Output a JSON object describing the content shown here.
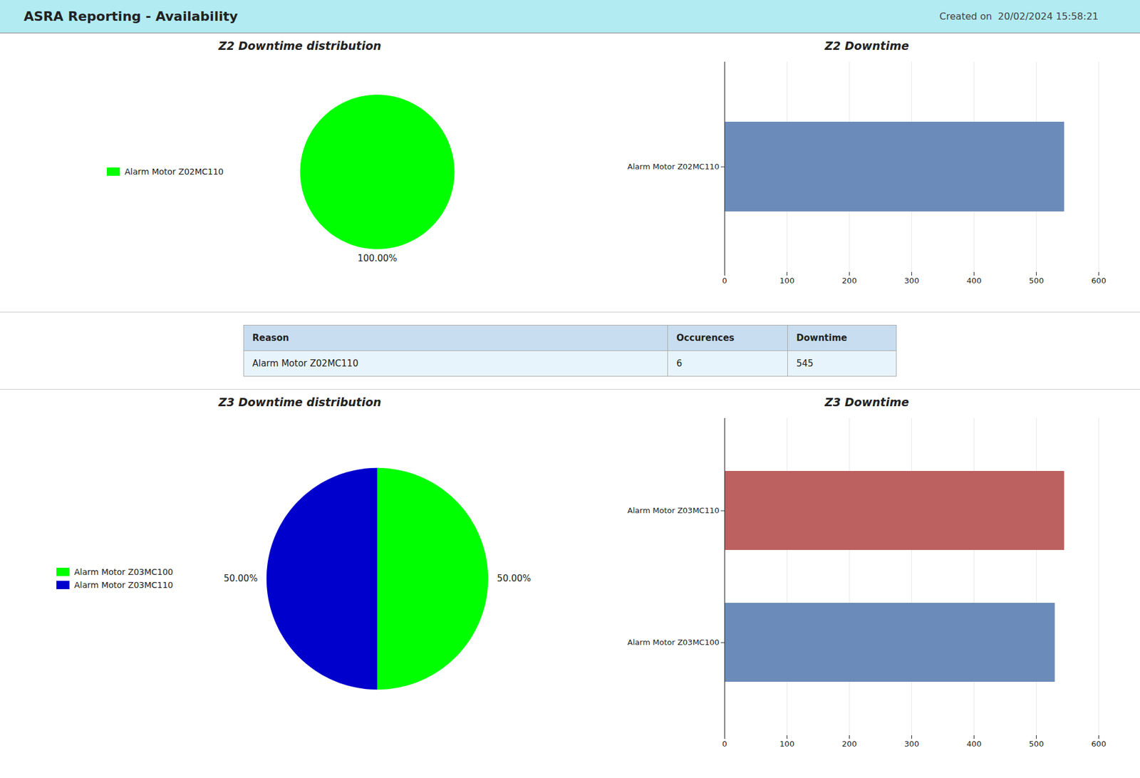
{
  "title": "ASRA Reporting - Availability",
  "subtitle": "Created on  20/02/2024 15:58:21",
  "color": "#b2ebf2",
  "chart_data": [
    {
      "type": "pie",
      "title": "Z2 Downtime distribution",
      "categories": [
        "Alarm Motor Z02MC110"
      ],
      "values": [
        100.0
      ],
      "value_labels": [
        "100.00%"
      ],
      "colors": [
        "#00ff00"
      ],
      "data_labels": true,
      "legend": "left"
    },
    {
      "type": "bar",
      "title": "Z2 Downtime",
      "orientation": "horizontal",
      "categories": [
        "Alarm Motor Z02MC110"
      ],
      "values": [
        545
      ],
      "colors": [
        "#6b8cba"
      ],
      "xlim": [
        0,
        600
      ],
      "xticks": [
        0,
        100,
        200,
        300,
        400,
        500,
        600
      ],
      "grid": true
    },
    {
      "type": "table",
      "columns": [
        "Reason",
        "Occurences",
        "Downtime"
      ],
      "rows": [
        [
          "Alarm Motor Z02MC110",
          "6",
          "545"
        ]
      ],
      "colors": [
        "#c8ddf0",
        "#e8f4fc"
      ]
    },
    {
      "type": "pie",
      "title": "Z3 Downtime distribution",
      "categories": [
        "Alarm Motor Z03MC100",
        "Alarm Motor Z03MC110"
      ],
      "values": [
        50.0,
        50.0
      ],
      "value_labels": [
        "50.00%",
        "50.00%"
      ],
      "colors": [
        "#00ff00",
        "#0000cd"
      ],
      "data_labels": true,
      "legend": "left"
    },
    {
      "type": "bar",
      "title": "Z3 Downtime",
      "orientation": "horizontal",
      "categories": [
        "Alarm Motor Z03MC110",
        "Alarm Motor Z03MC100"
      ],
      "values": [
        545,
        530
      ],
      "colors": [
        "#bc6060",
        "#6b8cba"
      ],
      "xlim": [
        0,
        600
      ],
      "xticks": [
        0,
        100,
        200,
        300,
        400,
        500,
        600
      ],
      "grid": true
    }
  ]
}
